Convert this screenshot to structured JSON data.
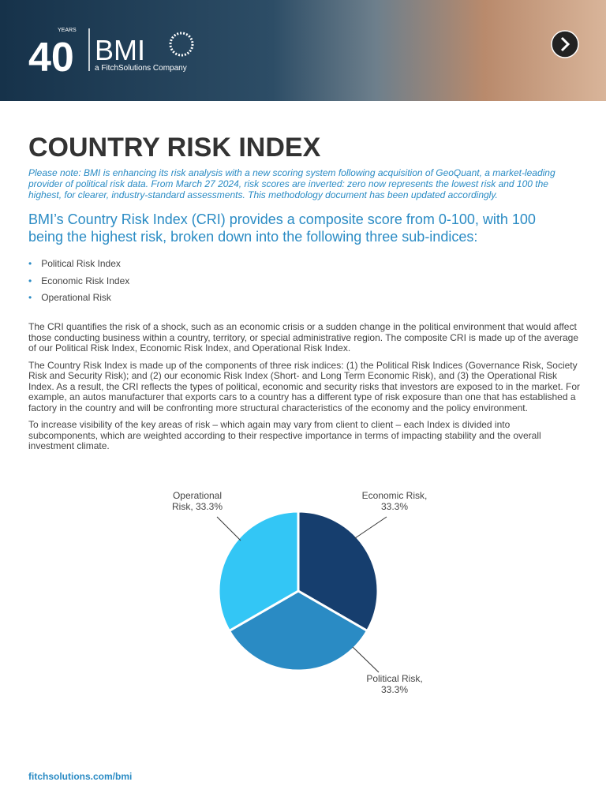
{
  "header": {
    "years_number": "40",
    "years_word": "YEARS",
    "brand": "BMI",
    "tagline": "a FitchSolutions Company"
  },
  "title": "COUNTRY RISK INDEX",
  "note": "Please note: BMI is enhancing its risk analysis with a new scoring system following acquisition of GeoQuant, a market-leading provider of political risk data. From March 27 2024, risk scores are inverted: zero now represents the lowest risk and 100 the highest, for clearer, industry-standard assessments. This methodology document has been updated accordingly.",
  "intro": "BMI’s Country Risk Index (CRI) provides a composite score from 0-100, with 100 being the highest risk, broken down into the following three sub-indices:",
  "bullets": [
    "Political Risk Index",
    "Economic Risk Index",
    "Operational Risk"
  ],
  "paragraphs": [
    "The CRI quantifies the risk of a shock, such as an economic crisis or a sudden change in the political environment that would affect those conducting business within a country, territory, or special administrative region. The composite CRI is made up of the average of our Political Risk Index, Economic Risk Index, and Operational Risk Index.",
    "The Country Risk Index is made up of the components of three risk indices: (1) the Political Risk Indices (Governance Risk, Society Risk and Security Risk); and (2) our economic Risk Index (Short- and Long Term Economic Risk), and (3) the Operational Risk Index. As a result, the CRI reflects the types of political, economic and security risks that investors are exposed to in the market. For example, an autos manufacturer that exports cars to a country has a different type of risk exposure than one that has established a factory in the country and will be confronting more structural characteristics of the economy and the policy environment.",
    "To increase visibility of the key areas of risk – which again may vary from client to client – each Index is divided into subcomponents, which are weighted according to their respective importance in terms of impacting stability and the overall investment climate."
  ],
  "chart_data": {
    "type": "pie",
    "categories": [
      "Economic Risk",
      "Political Risk",
      "Operational Risk"
    ],
    "values": [
      33.3,
      33.3,
      33.3
    ],
    "value_labels": [
      "Economic Risk,\n33.3%",
      "Political Risk,\n33.3%",
      "Operational\nRisk, 33.3%"
    ],
    "colors": [
      "#163e6e",
      "#2a8bc4",
      "#33c6f5"
    ]
  },
  "footer": "fitchsolutions.com/bmi"
}
